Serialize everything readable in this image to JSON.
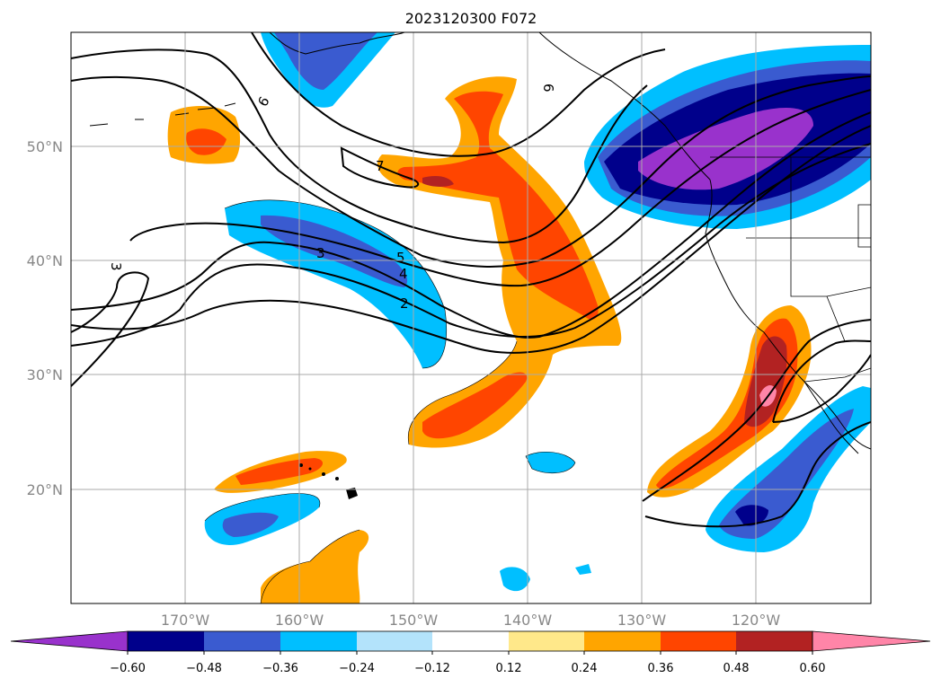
{
  "title": "2023120300 F072",
  "latitude_labels": [
    "50°N",
    "40°N",
    "30°N",
    "20°N"
  ],
  "longitude_labels": [
    "170°W",
    "160°W",
    "150°W",
    "140°W",
    "130°W",
    "120°W"
  ],
  "colorbar": {
    "ticks": [
      "−0.60",
      "−0.48",
      "−0.36",
      "−0.24",
      "−0.12",
      "0.12",
      "0.24",
      "0.36",
      "0.48",
      "0.60"
    ],
    "colors": [
      "#9932cc",
      "#00008b",
      "#3a5bd0",
      "#00bfff",
      "#b3e3fb",
      "#ffffff",
      "#ffe88a",
      "#ffa500",
      "#ff4500",
      "#b22222",
      "#ff85a8"
    ]
  },
  "contour_labels": [
    "2",
    "3",
    "4",
    "5",
    "6",
    "6",
    "7",
    "3"
  ],
  "colors": {
    "purple": "#9932cc",
    "navy": "#00008b",
    "blue": "#3a5bd0",
    "cyan": "#00bfff",
    "pale_blue": "#b3e3fb",
    "pale_yellow": "#ffe88a",
    "orange": "#ffa500",
    "red_orange": "#ff4500",
    "dark_red": "#b22222",
    "pink": "#ff85a8"
  }
}
